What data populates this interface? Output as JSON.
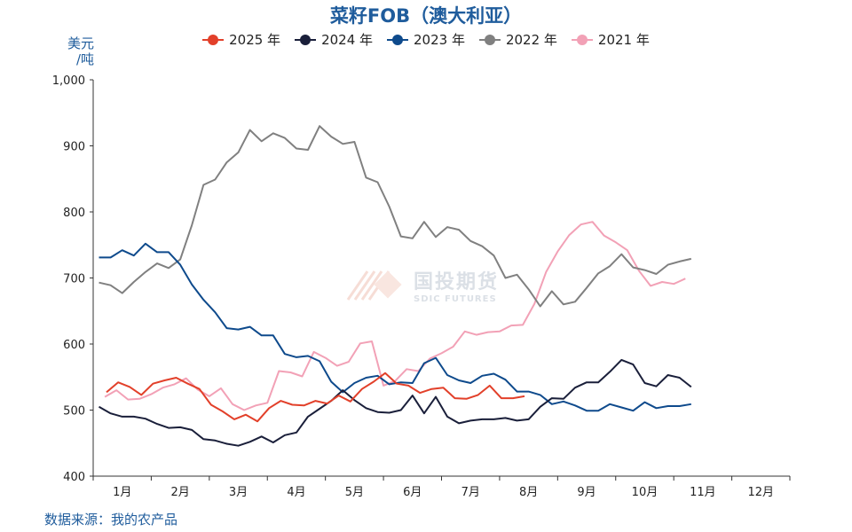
{
  "chart_data": {
    "type": "line",
    "title": "菜籽FOB（澳大利亚）",
    "ylabel": "美元\n/吨",
    "unit_line1": "美元",
    "unit_line2": "/吨",
    "ylim": [
      400,
      1000
    ],
    "yticks": [
      "400",
      "500",
      "600",
      "700",
      "800",
      "900",
      "1,000"
    ],
    "yticks_values": [
      400,
      500,
      600,
      700,
      800,
      900,
      1000
    ],
    "x_range": [
      0.7,
      12.7
    ],
    "categories": [
      "1月",
      "2月",
      "3月",
      "4月",
      "5月",
      "6月",
      "7月",
      "8月",
      "9月",
      "10月",
      "11月",
      "12月"
    ],
    "category_centers": [
      1.2,
      2.2,
      3.2,
      4.2,
      5.2,
      6.2,
      7.2,
      8.2,
      9.2,
      10.2,
      11.2,
      12.2
    ],
    "legend_position": "top",
    "grid": false,
    "series": [
      {
        "name": "2025 年",
        "color": "#e2402a",
        "values": [
          [
            0.93,
            527
          ],
          [
            1.13,
            542
          ],
          [
            1.33,
            535
          ],
          [
            1.53,
            523
          ],
          [
            1.73,
            540
          ],
          [
            1.93,
            545
          ],
          [
            2.13,
            549
          ],
          [
            2.33,
            540
          ],
          [
            2.53,
            532
          ],
          [
            2.73,
            508
          ],
          [
            2.93,
            498
          ],
          [
            3.13,
            486
          ],
          [
            3.33,
            493
          ],
          [
            3.53,
            483
          ],
          [
            3.73,
            503
          ],
          [
            3.93,
            514
          ],
          [
            4.13,
            508
          ],
          [
            4.33,
            507
          ],
          [
            4.53,
            514
          ],
          [
            4.73,
            510
          ],
          [
            4.93,
            522
          ],
          [
            5.13,
            513
          ],
          [
            5.33,
            532
          ],
          [
            5.53,
            543
          ],
          [
            5.73,
            556
          ],
          [
            5.93,
            540
          ],
          [
            6.13,
            537
          ],
          [
            6.33,
            526
          ],
          [
            6.53,
            532
          ],
          [
            6.73,
            534
          ],
          [
            6.93,
            518
          ],
          [
            7.13,
            517
          ],
          [
            7.33,
            523
          ],
          [
            7.53,
            537
          ],
          [
            7.73,
            518
          ],
          [
            7.93,
            518
          ],
          [
            8.13,
            521
          ]
        ]
      },
      {
        "name": "2024 年",
        "color": "#1a1f3a",
        "values": [
          [
            0.8,
            505
          ],
          [
            1.0,
            495
          ],
          [
            1.2,
            490
          ],
          [
            1.4,
            490
          ],
          [
            1.6,
            487
          ],
          [
            1.8,
            479
          ],
          [
            2.0,
            473
          ],
          [
            2.2,
            474
          ],
          [
            2.4,
            470
          ],
          [
            2.6,
            456
          ],
          [
            2.8,
            454
          ],
          [
            3.0,
            449
          ],
          [
            3.2,
            446
          ],
          [
            3.4,
            452
          ],
          [
            3.6,
            460
          ],
          [
            3.8,
            451
          ],
          [
            4.0,
            462
          ],
          [
            4.2,
            466
          ],
          [
            4.4,
            490
          ],
          [
            4.6,
            502
          ],
          [
            4.8,
            514
          ],
          [
            5.0,
            530
          ],
          [
            5.2,
            515
          ],
          [
            5.4,
            503
          ],
          [
            5.6,
            497
          ],
          [
            5.8,
            496
          ],
          [
            6.0,
            500
          ],
          [
            6.2,
            522
          ],
          [
            6.4,
            495
          ],
          [
            6.6,
            520
          ],
          [
            6.8,
            490
          ],
          [
            7.0,
            480
          ],
          [
            7.2,
            484
          ],
          [
            7.4,
            486
          ],
          [
            7.6,
            486
          ],
          [
            7.8,
            488
          ],
          [
            8.0,
            484
          ],
          [
            8.2,
            486
          ],
          [
            8.4,
            505
          ],
          [
            8.6,
            518
          ],
          [
            8.8,
            517
          ],
          [
            9.0,
            534
          ],
          [
            9.2,
            542
          ],
          [
            9.4,
            542
          ],
          [
            9.6,
            558
          ],
          [
            9.8,
            576
          ],
          [
            10.0,
            569
          ],
          [
            10.2,
            541
          ],
          [
            10.4,
            536
          ],
          [
            10.6,
            553
          ],
          [
            10.8,
            549
          ],
          [
            11.0,
            535
          ]
        ]
      },
      {
        "name": "2023 年",
        "color": "#0e4a8c",
        "values": [
          [
            0.8,
            731
          ],
          [
            1.0,
            731
          ],
          [
            1.2,
            742
          ],
          [
            1.4,
            734
          ],
          [
            1.6,
            752
          ],
          [
            1.8,
            739
          ],
          [
            2.0,
            739
          ],
          [
            2.2,
            720
          ],
          [
            2.4,
            690
          ],
          [
            2.6,
            667
          ],
          [
            2.8,
            648
          ],
          [
            3.0,
            624
          ],
          [
            3.2,
            622
          ],
          [
            3.4,
            626
          ],
          [
            3.6,
            613
          ],
          [
            3.8,
            613
          ],
          [
            4.0,
            585
          ],
          [
            4.2,
            580
          ],
          [
            4.4,
            582
          ],
          [
            4.6,
            574
          ],
          [
            4.8,
            543
          ],
          [
            5.0,
            527
          ],
          [
            5.2,
            541
          ],
          [
            5.4,
            549
          ],
          [
            5.6,
            552
          ],
          [
            5.8,
            539
          ],
          [
            6.0,
            542
          ],
          [
            6.2,
            541
          ],
          [
            6.4,
            571
          ],
          [
            6.6,
            579
          ],
          [
            6.8,
            553
          ],
          [
            7.0,
            545
          ],
          [
            7.2,
            541
          ],
          [
            7.4,
            552
          ],
          [
            7.6,
            555
          ],
          [
            7.8,
            546
          ],
          [
            8.0,
            528
          ],
          [
            8.2,
            528
          ],
          [
            8.4,
            523
          ],
          [
            8.6,
            509
          ],
          [
            8.8,
            513
          ],
          [
            9.0,
            507
          ],
          [
            9.2,
            499
          ],
          [
            9.4,
            499
          ],
          [
            9.6,
            509
          ],
          [
            9.8,
            504
          ],
          [
            10.0,
            499
          ],
          [
            10.2,
            512
          ],
          [
            10.4,
            503
          ],
          [
            10.6,
            506
          ],
          [
            10.8,
            506
          ],
          [
            11.0,
            509
          ]
        ]
      },
      {
        "name": "2022 年",
        "color": "#808080",
        "values": [
          [
            0.8,
            693
          ],
          [
            1.0,
            689
          ],
          [
            1.2,
            677
          ],
          [
            1.4,
            694
          ],
          [
            1.6,
            709
          ],
          [
            1.8,
            722
          ],
          [
            2.0,
            715
          ],
          [
            2.2,
            728
          ],
          [
            2.4,
            780
          ],
          [
            2.6,
            841
          ],
          [
            2.8,
            849
          ],
          [
            3.0,
            875
          ],
          [
            3.2,
            890
          ],
          [
            3.4,
            924
          ],
          [
            3.6,
            907
          ],
          [
            3.8,
            919
          ],
          [
            4.0,
            912
          ],
          [
            4.2,
            896
          ],
          [
            4.4,
            894
          ],
          [
            4.6,
            930
          ],
          [
            4.8,
            914
          ],
          [
            5.0,
            903
          ],
          [
            5.2,
            906
          ],
          [
            5.4,
            852
          ],
          [
            5.6,
            845
          ],
          [
            5.8,
            808
          ],
          [
            6.0,
            763
          ],
          [
            6.2,
            760
          ],
          [
            6.4,
            785
          ],
          [
            6.6,
            762
          ],
          [
            6.8,
            777
          ],
          [
            7.0,
            773
          ],
          [
            7.2,
            756
          ],
          [
            7.4,
            748
          ],
          [
            7.6,
            734
          ],
          [
            7.8,
            700
          ],
          [
            8.0,
            705
          ],
          [
            8.2,
            683
          ],
          [
            8.4,
            657
          ],
          [
            8.6,
            680
          ],
          [
            8.8,
            660
          ],
          [
            9.0,
            664
          ],
          [
            9.2,
            685
          ],
          [
            9.4,
            707
          ],
          [
            9.6,
            718
          ],
          [
            9.8,
            736
          ],
          [
            10.0,
            716
          ],
          [
            10.2,
            712
          ],
          [
            10.4,
            706
          ],
          [
            10.6,
            720
          ],
          [
            10.8,
            725
          ],
          [
            11.0,
            729
          ]
        ]
      },
      {
        "name": "2021 年",
        "color": "#f2a1b6",
        "values": [
          [
            0.9,
            520
          ],
          [
            1.1,
            530
          ],
          [
            1.3,
            516
          ],
          [
            1.5,
            517
          ],
          [
            1.7,
            524
          ],
          [
            1.9,
            534
          ],
          [
            2.1,
            539
          ],
          [
            2.3,
            548
          ],
          [
            2.5,
            531
          ],
          [
            2.7,
            521
          ],
          [
            2.9,
            533
          ],
          [
            3.1,
            509
          ],
          [
            3.3,
            500
          ],
          [
            3.5,
            507
          ],
          [
            3.7,
            511
          ],
          [
            3.9,
            559
          ],
          [
            4.1,
            557
          ],
          [
            4.3,
            551
          ],
          [
            4.5,
            588
          ],
          [
            4.7,
            579
          ],
          [
            4.9,
            567
          ],
          [
            5.1,
            573
          ],
          [
            5.3,
            601
          ],
          [
            5.5,
            604
          ],
          [
            5.7,
            537
          ],
          [
            5.9,
            544
          ],
          [
            6.1,
            562
          ],
          [
            6.3,
            559
          ],
          [
            6.5,
            578
          ],
          [
            6.7,
            586
          ],
          [
            6.9,
            596
          ],
          [
            7.1,
            619
          ],
          [
            7.3,
            614
          ],
          [
            7.5,
            618
          ],
          [
            7.7,
            619
          ],
          [
            7.9,
            628
          ],
          [
            8.1,
            629
          ],
          [
            8.3,
            661
          ],
          [
            8.5,
            709
          ],
          [
            8.7,
            740
          ],
          [
            8.9,
            765
          ],
          [
            9.1,
            781
          ],
          [
            9.3,
            785
          ],
          [
            9.5,
            764
          ],
          [
            9.7,
            754
          ],
          [
            9.9,
            742
          ],
          [
            10.1,
            711
          ],
          [
            10.3,
            688
          ],
          [
            10.5,
            694
          ],
          [
            10.7,
            691
          ],
          [
            10.9,
            699
          ]
        ]
      }
    ]
  },
  "source": "数据来源：我的农产品",
  "watermark": {
    "cn": "国投期货",
    "en": "SDIC FUTURES"
  }
}
